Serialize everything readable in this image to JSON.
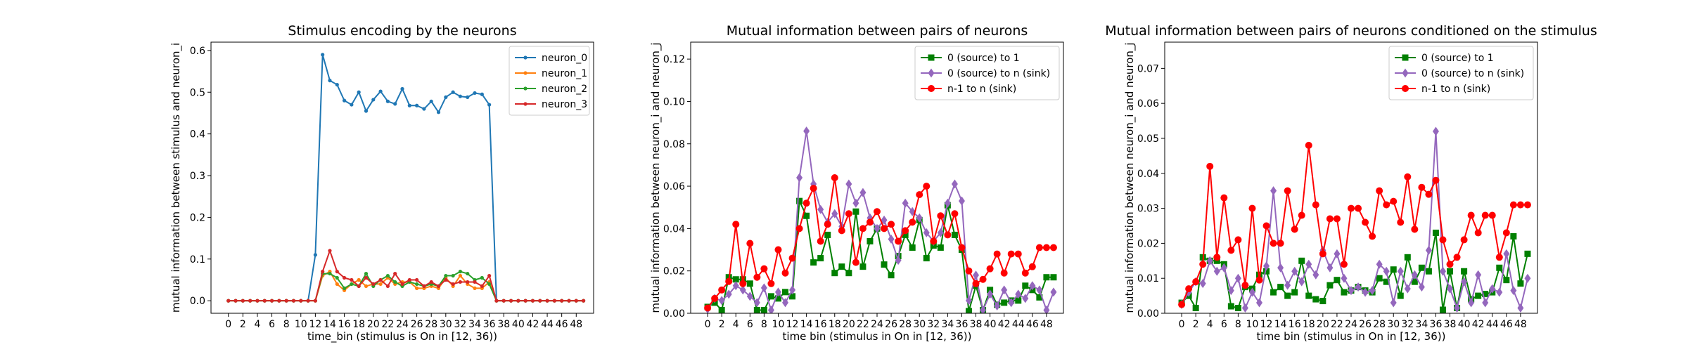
{
  "colors": {
    "neuron_0": "#1f77b4",
    "neuron_1": "#ff7f0e",
    "neuron_2": "#2ca02c",
    "neuron_3": "#d62728",
    "source_to_1": "#008000",
    "source_to_sink": "#9467bd",
    "prev_to_sink": "#ff0000"
  },
  "chart_data": [
    {
      "type": "line",
      "title": "Stimulus encoding by the neurons",
      "xlabel": "time_bin (stimulus is On in [12, 36))",
      "ylabel": "mutual information between stimulus and neuron_i",
      "xlim": [
        -2.4,
        50.4
      ],
      "ylim": [
        -0.03,
        0.62
      ],
      "xticks": [
        0,
        2,
        4,
        6,
        8,
        10,
        12,
        14,
        16,
        18,
        20,
        22,
        24,
        26,
        28,
        30,
        32,
        34,
        36,
        38,
        40,
        42,
        44,
        46,
        48
      ],
      "xtick_labels": [
        "0",
        "2",
        "4",
        "6",
        "8",
        "10",
        "12",
        "14",
        "16",
        "18",
        "20",
        "22",
        "24",
        "26",
        "28",
        "30",
        "32",
        "34",
        "36",
        "38",
        "40",
        "42",
        "44",
        "46",
        "48"
      ],
      "yticks": [
        0.0,
        0.1,
        0.2,
        0.3,
        0.4,
        0.5,
        0.6
      ],
      "ytick_labels": [
        "0.0",
        "0.1",
        "0.2",
        "0.3",
        "0.4",
        "0.5",
        "0.6"
      ],
      "legend": "top-right",
      "x": [
        0,
        1,
        2,
        3,
        4,
        5,
        6,
        7,
        8,
        9,
        10,
        11,
        12,
        13,
        14,
        15,
        16,
        17,
        18,
        19,
        20,
        21,
        22,
        23,
        24,
        25,
        26,
        27,
        28,
        29,
        30,
        31,
        32,
        33,
        34,
        35,
        36,
        37,
        38,
        39,
        40,
        41,
        42,
        43,
        44,
        45,
        46,
        47,
        48,
        49
      ],
      "series": [
        {
          "name": "neuron_0",
          "color_key": "neuron_0",
          "marker": "dot",
          "values": [
            0,
            0,
            0,
            0,
            0,
            0,
            0,
            0,
            0,
            0,
            0,
            0,
            0.11,
            0.59,
            0.528,
            0.518,
            0.48,
            0.47,
            0.5,
            0.455,
            0.482,
            0.502,
            0.478,
            0.472,
            0.508,
            0.468,
            0.468,
            0.46,
            0.478,
            0.452,
            0.488,
            0.5,
            0.49,
            0.488,
            0.498,
            0.495,
            0.47,
            0,
            0,
            0,
            0,
            0,
            0,
            0,
            0,
            0,
            0,
            0,
            0,
            0
          ]
        },
        {
          "name": "neuron_1",
          "color_key": "neuron_1",
          "marker": "dot",
          "values": [
            0,
            0,
            0,
            0,
            0,
            0,
            0,
            0,
            0,
            0,
            0,
            0,
            0,
            0.06,
            0.07,
            0.04,
            0.025,
            0.04,
            0.05,
            0.035,
            0.04,
            0.04,
            0.055,
            0.04,
            0.045,
            0.045,
            0.03,
            0.03,
            0.035,
            0.03,
            0.055,
            0.035,
            0.06,
            0.04,
            0.03,
            0.03,
            0.045,
            0,
            0,
            0,
            0,
            0,
            0,
            0,
            0,
            0,
            0,
            0,
            0,
            0
          ]
        },
        {
          "name": "neuron_2",
          "color_key": "neuron_2",
          "marker": "dot",
          "values": [
            0,
            0,
            0,
            0,
            0,
            0,
            0,
            0,
            0,
            0,
            0,
            0,
            0,
            0.065,
            0.065,
            0.055,
            0.03,
            0.04,
            0.035,
            0.065,
            0.035,
            0.05,
            0.06,
            0.045,
            0.035,
            0.045,
            0.04,
            0.035,
            0.04,
            0.035,
            0.06,
            0.06,
            0.07,
            0.065,
            0.05,
            0.055,
            0.04,
            0,
            0,
            0,
            0,
            0,
            0,
            0,
            0,
            0,
            0,
            0,
            0,
            0
          ]
        },
        {
          "name": "neuron_3",
          "color_key": "neuron_3",
          "marker": "dot",
          "values": [
            0,
            0,
            0,
            0,
            0,
            0,
            0,
            0,
            0,
            0,
            0,
            0,
            0,
            0.07,
            0.12,
            0.07,
            0.055,
            0.05,
            0.035,
            0.055,
            0.04,
            0.05,
            0.035,
            0.065,
            0.04,
            0.05,
            0.05,
            0.035,
            0.045,
            0.035,
            0.05,
            0.04,
            0.045,
            0.045,
            0.045,
            0.035,
            0.06,
            0,
            0,
            0,
            0,
            0,
            0,
            0,
            0,
            0,
            0,
            0,
            0,
            0
          ]
        }
      ]
    },
    {
      "type": "line",
      "title": "Mutual information between pairs of neurons",
      "xlabel": "time bin (stimulus in On in [12, 36))",
      "ylabel": "mutual information between neuron_i and neuron_j",
      "xlim": [
        -2.4,
        50.4
      ],
      "ylim": [
        0,
        0.128
      ],
      "xticks": [
        0,
        2,
        4,
        6,
        8,
        10,
        12,
        14,
        16,
        18,
        20,
        22,
        24,
        26,
        28,
        30,
        32,
        34,
        36,
        38,
        40,
        42,
        44,
        46,
        48
      ],
      "xtick_labels": [
        "0",
        "2",
        "4",
        "6",
        "8",
        "10",
        "12",
        "14",
        "16",
        "18",
        "20",
        "22",
        "24",
        "26",
        "28",
        "30",
        "32",
        "34",
        "36",
        "38",
        "40",
        "42",
        "44",
        "46",
        "48"
      ],
      "yticks": [
        0.0,
        0.02,
        0.04,
        0.06,
        0.08,
        0.1,
        0.12
      ],
      "ytick_labels": [
        "0.00",
        "0.02",
        "0.04",
        "0.06",
        "0.08",
        "0.10",
        "0.12"
      ],
      "legend": "top-right",
      "x": [
        0,
        1,
        2,
        3,
        4,
        5,
        6,
        7,
        8,
        9,
        10,
        11,
        12,
        13,
        14,
        15,
        16,
        17,
        18,
        19,
        20,
        21,
        22,
        23,
        24,
        25,
        26,
        27,
        28,
        29,
        30,
        31,
        32,
        33,
        34,
        35,
        36,
        37,
        38,
        39,
        40,
        41,
        42,
        43,
        44,
        45,
        46,
        47,
        48,
        49
      ],
      "series": [
        {
          "name": "0 (source) to 1",
          "color_key": "source_to_1",
          "marker": "square",
          "values": [
            0.003,
            0.005,
            0.0015,
            0.017,
            0.016,
            0.016,
            0.014,
            0.0015,
            0.0015,
            0.008,
            0.007,
            0.01,
            0.008,
            0.053,
            0.046,
            0.024,
            0.026,
            0.037,
            0.019,
            0.022,
            0.019,
            0.048,
            0.022,
            0.034,
            0.04,
            0.023,
            0.018,
            0.027,
            0.037,
            0.031,
            0.044,
            0.026,
            0.032,
            0.031,
            0.051,
            0.037,
            0.03,
            0.001,
            0.013,
            0.0015,
            0.011,
            0.004,
            0.005,
            0.006,
            0.006,
            0.013,
            0.011,
            0.0075,
            0.017,
            0.017
          ]
        },
        {
          "name": "0 (source) to n (sink)",
          "color_key": "source_to_sink",
          "marker": "diamond",
          "values": [
            0.002,
            0.007,
            0.006,
            0.009,
            0.013,
            0.011,
            0.008,
            0.005,
            0.012,
            0.0015,
            0.01,
            0.005,
            0.011,
            0.064,
            0.086,
            0.061,
            0.049,
            0.043,
            0.047,
            0.041,
            0.061,
            0.052,
            0.057,
            0.045,
            0.04,
            0.044,
            0.035,
            0.025,
            0.052,
            0.048,
            0.045,
            0.038,
            0.034,
            0.038,
            0.052,
            0.061,
            0.053,
            0.006,
            0.018,
            0.0015,
            0.009,
            0.0035,
            0.011,
            0.005,
            0.009,
            0.007,
            0.013,
            0.011,
            0.0015,
            0.01
          ]
        },
        {
          "name": "n-1 to n (sink)",
          "color_key": "prev_to_sink",
          "marker": "circle",
          "values": [
            0.0025,
            0.007,
            0.011,
            0.015,
            0.042,
            0.014,
            0.033,
            0.017,
            0.021,
            0.014,
            0.03,
            0.019,
            0.026,
            0.04,
            0.052,
            0.059,
            0.034,
            0.042,
            0.064,
            0.039,
            0.047,
            0.024,
            0.04,
            0.043,
            0.048,
            0.04,
            0.042,
            0.034,
            0.039,
            0.043,
            0.056,
            0.06,
            0.034,
            0.046,
            0.037,
            0.047,
            0.031,
            0.02,
            0.014,
            0.016,
            0.021,
            0.028,
            0.019,
            0.028,
            0.028,
            0.019,
            0.022,
            0.031,
            0.031,
            0.031
          ]
        }
      ]
    },
    {
      "type": "line",
      "title": "Mutual information between pairs of neurons conditioned on the stimulus",
      "xlabel": "time bin (stimulus in On in [12, 36))",
      "ylabel": "mutual information between neuron_i and neuron_j",
      "xlim": [
        -2.4,
        50.4
      ],
      "ylim": [
        0,
        0.0775
      ],
      "xticks": [
        0,
        2,
        4,
        6,
        8,
        10,
        12,
        14,
        16,
        18,
        20,
        22,
        24,
        26,
        28,
        30,
        32,
        34,
        36,
        38,
        40,
        42,
        44,
        46,
        48
      ],
      "xtick_labels": [
        "0",
        "2",
        "4",
        "6",
        "8",
        "10",
        "12",
        "14",
        "16",
        "18",
        "20",
        "22",
        "24",
        "26",
        "28",
        "30",
        "32",
        "34",
        "36",
        "38",
        "40",
        "42",
        "44",
        "46",
        "48"
      ],
      "yticks": [
        0.0,
        0.01,
        0.02,
        0.03,
        0.04,
        0.05,
        0.06,
        0.07
      ],
      "ytick_labels": [
        "0.00",
        "0.01",
        "0.02",
        "0.03",
        "0.04",
        "0.05",
        "0.06",
        "0.07"
      ],
      "legend": "top-right",
      "x": [
        0,
        1,
        2,
        3,
        4,
        5,
        6,
        7,
        8,
        9,
        10,
        11,
        12,
        13,
        14,
        15,
        16,
        17,
        18,
        19,
        20,
        21,
        22,
        23,
        24,
        25,
        26,
        27,
        28,
        29,
        30,
        31,
        32,
        33,
        34,
        35,
        36,
        37,
        38,
        39,
        40,
        41,
        42,
        43,
        44,
        45,
        46,
        47,
        48,
        49
      ],
      "series": [
        {
          "name": "0 (source) to 1",
          "color_key": "source_to_1",
          "marker": "square",
          "values": [
            0.003,
            0.005,
            0.0015,
            0.016,
            0.015,
            0.015,
            0.014,
            0.002,
            0.0015,
            0.0075,
            0.007,
            0.011,
            0.012,
            0.006,
            0.0075,
            0.005,
            0.006,
            0.015,
            0.005,
            0.004,
            0.0035,
            0.008,
            0.0095,
            0.006,
            0.0065,
            0.0075,
            0.0065,
            0.006,
            0.01,
            0.009,
            0.0125,
            0.005,
            0.016,
            0.009,
            0.013,
            0.012,
            0.023,
            0.001,
            0.012,
            0.0015,
            0.012,
            0.004,
            0.005,
            0.0055,
            0.006,
            0.013,
            0.0095,
            0.022,
            0.0085,
            0.017
          ]
        },
        {
          "name": "0 (source) to n (sink)",
          "color_key": "source_to_sink",
          "marker": "diamond",
          "values": [
            0.0025,
            0.006,
            0.009,
            0.0085,
            0.015,
            0.012,
            0.013,
            0.0065,
            0.01,
            0.0015,
            0.006,
            0.003,
            0.0135,
            0.035,
            0.013,
            0.008,
            0.012,
            0.009,
            0.014,
            0.011,
            0.018,
            0.013,
            0.017,
            0.01,
            0.0065,
            0.0075,
            0.006,
            0.0065,
            0.014,
            0.012,
            0.003,
            0.012,
            0.007,
            0.011,
            0.0075,
            0.018,
            0.052,
            0.012,
            0.007,
            0.0015,
            0.009,
            0.003,
            0.011,
            0.003,
            0.007,
            0.006,
            0.017,
            0.0065,
            0.0015,
            0.01
          ]
        },
        {
          "name": "n-1 to n (sink)",
          "color_key": "prev_to_sink",
          "marker": "circle",
          "values": [
            0.0025,
            0.007,
            0.009,
            0.014,
            0.042,
            0.016,
            0.033,
            0.018,
            0.021,
            0.008,
            0.03,
            0.0095,
            0.025,
            0.02,
            0.02,
            0.035,
            0.024,
            0.028,
            0.048,
            0.031,
            0.017,
            0.027,
            0.027,
            0.014,
            0.03,
            0.03,
            0.026,
            0.022,
            0.035,
            0.031,
            0.032,
            0.026,
            0.039,
            0.024,
            0.036,
            0.034,
            0.038,
            0.021,
            0.014,
            0.016,
            0.021,
            0.028,
            0.023,
            0.028,
            0.028,
            0.016,
            0.023,
            0.031,
            0.031,
            0.031
          ]
        }
      ]
    }
  ]
}
